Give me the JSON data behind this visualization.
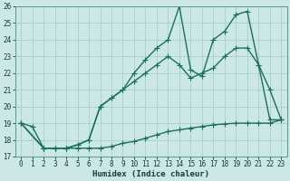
{
  "xlabel": "Humidex (Indice chaleur)",
  "bg_color": "#cce8e4",
  "grid_color": "#a8d0cc",
  "line_color": "#1a7060",
  "xlim": [
    -0.5,
    23.5
  ],
  "ylim": [
    17,
    26
  ],
  "xticks": [
    0,
    1,
    2,
    3,
    4,
    5,
    6,
    7,
    8,
    9,
    10,
    11,
    12,
    13,
    14,
    15,
    16,
    17,
    18,
    19,
    20,
    21,
    22,
    23
  ],
  "yticks": [
    17,
    18,
    19,
    20,
    21,
    22,
    23,
    24,
    25,
    26
  ],
  "line1_x": [
    0,
    1,
    2,
    3,
    4,
    5,
    6,
    7,
    8,
    9,
    10,
    11,
    12,
    13,
    14,
    15,
    16,
    17,
    18,
    19,
    20,
    21,
    22,
    23
  ],
  "line1_y": [
    19.0,
    18.8,
    17.5,
    17.5,
    17.5,
    17.5,
    17.5,
    17.5,
    17.6,
    17.8,
    17.9,
    18.1,
    18.3,
    18.5,
    18.6,
    18.7,
    18.8,
    18.9,
    18.95,
    19.0,
    19.0,
    19.0,
    19.0,
    19.2
  ],
  "line2_x": [
    0,
    2,
    3,
    4,
    5,
    6,
    7,
    8,
    9,
    10,
    11,
    12,
    13,
    14,
    15,
    16,
    17,
    18,
    19,
    20,
    21,
    22,
    23
  ],
  "line2_y": [
    19.0,
    17.5,
    17.5,
    17.5,
    17.7,
    18.0,
    20.0,
    20.5,
    21.0,
    21.5,
    22.0,
    22.5,
    23.0,
    22.5,
    21.7,
    22.0,
    22.3,
    23.0,
    23.5,
    23.5,
    22.5,
    21.0,
    19.2
  ],
  "line3_x": [
    0,
    2,
    3,
    4,
    5,
    6,
    7,
    8,
    9,
    10,
    11,
    12,
    13,
    14,
    15,
    16,
    17,
    18,
    19,
    20,
    21,
    22,
    23
  ],
  "line3_y": [
    19.0,
    17.5,
    17.5,
    17.5,
    17.7,
    18.0,
    20.0,
    20.5,
    21.0,
    22.0,
    22.8,
    23.5,
    24.0,
    26.0,
    22.2,
    21.8,
    24.0,
    24.5,
    25.5,
    25.7,
    22.5,
    19.2,
    19.2
  ],
  "markersize": 2.5,
  "linewidth": 1.0
}
